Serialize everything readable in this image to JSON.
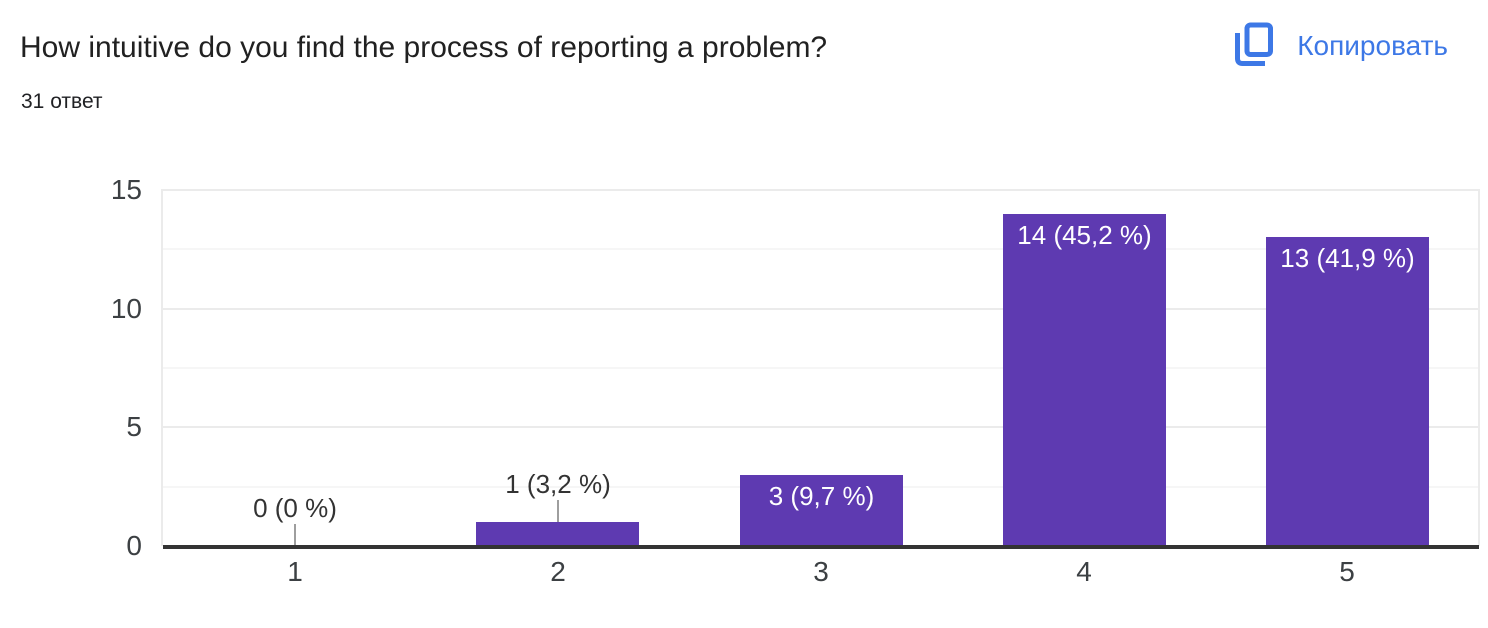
{
  "header": {
    "title": "How intuitive do you find the process of reporting a problem?",
    "responses_count": "31 ответ",
    "copy_button_label": "Копировать"
  },
  "colors": {
    "bar": "#5e3ab1",
    "accent_blue": "#3d78e6",
    "axis": "#333333",
    "grid_major": "#ebebeb",
    "grid_minor": "#f6f6f6",
    "stem": "#9e9e9e",
    "annotation_dark": "#333333",
    "annotation_light": "#ffffff",
    "tick_text": "#3c4043",
    "title_text": "#212121"
  },
  "chart_data": {
    "type": "bar",
    "title": "How intuitive do you find the process of reporting a problem?",
    "categories": [
      "1",
      "2",
      "3",
      "4",
      "5"
    ],
    "values": [
      0,
      1,
      3,
      14,
      13
    ],
    "annotations": [
      "0 (0 %)",
      "1 (3,2 %)",
      "3 (9,7 %)",
      "14 (45,2 %)",
      "13 (41,9 %)"
    ],
    "total_responses": 31,
    "xlabel": "",
    "ylabel": "",
    "y_ticks": [
      0,
      5,
      10,
      15
    ],
    "ylim": [
      0,
      15
    ],
    "grid": true,
    "legend": "none"
  }
}
